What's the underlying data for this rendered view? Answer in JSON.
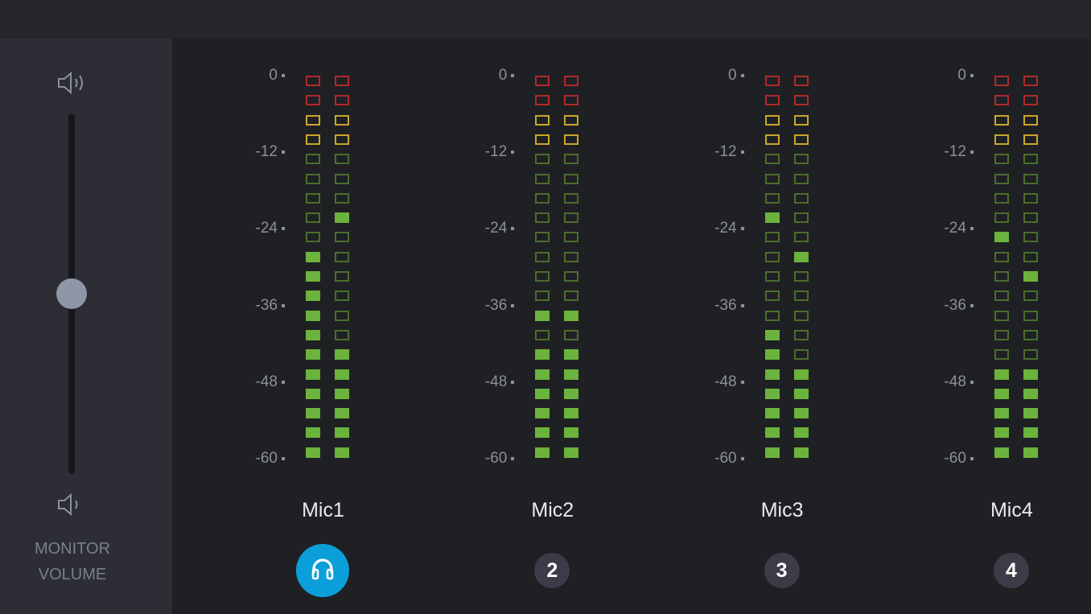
{
  "monitor": {
    "label_line1": "MONITOR",
    "label_line2": "VOLUME",
    "max_icon": "speaker-loud-icon",
    "min_icon": "speaker-soft-icon",
    "volume_level": 0.5
  },
  "meter_scale": {
    "ticks": [
      "0",
      "-12",
      "-24",
      "-36",
      "-48",
      "-60"
    ],
    "segments_per_column": 20,
    "zones_from_top": {
      "red": 2,
      "yellow": 2,
      "green": 16
    }
  },
  "colors": {
    "background": "#1f2024",
    "panel": "#2c2d35",
    "red": "#b02a2a",
    "yellow": "#c9a62a",
    "green_lit": "#6bb33c",
    "green_unlit": "#4a6e2c",
    "accent": "#0a9fd8",
    "button": "#3b3c47"
  },
  "channels": [
    {
      "name": "Mic1",
      "button": "",
      "button_icon": "headphones-icon",
      "active": true,
      "left_lit": 10,
      "left_peak": 11,
      "right_lit": 6,
      "right_peak": 13
    },
    {
      "name": "Mic2",
      "button": "2",
      "active": false,
      "left_lit": 6,
      "left_peak": 8,
      "right_lit": 6,
      "right_peak": 8
    },
    {
      "name": "Mic3",
      "button": "3",
      "active": false,
      "left_lit": 7,
      "left_peak": 13,
      "right_lit": 5,
      "right_peak": 11
    },
    {
      "name": "Mic4",
      "button": "4",
      "active": false,
      "left_lit": 5,
      "left_peak": 12,
      "right_lit": 5,
      "right_peak": 10
    }
  ]
}
